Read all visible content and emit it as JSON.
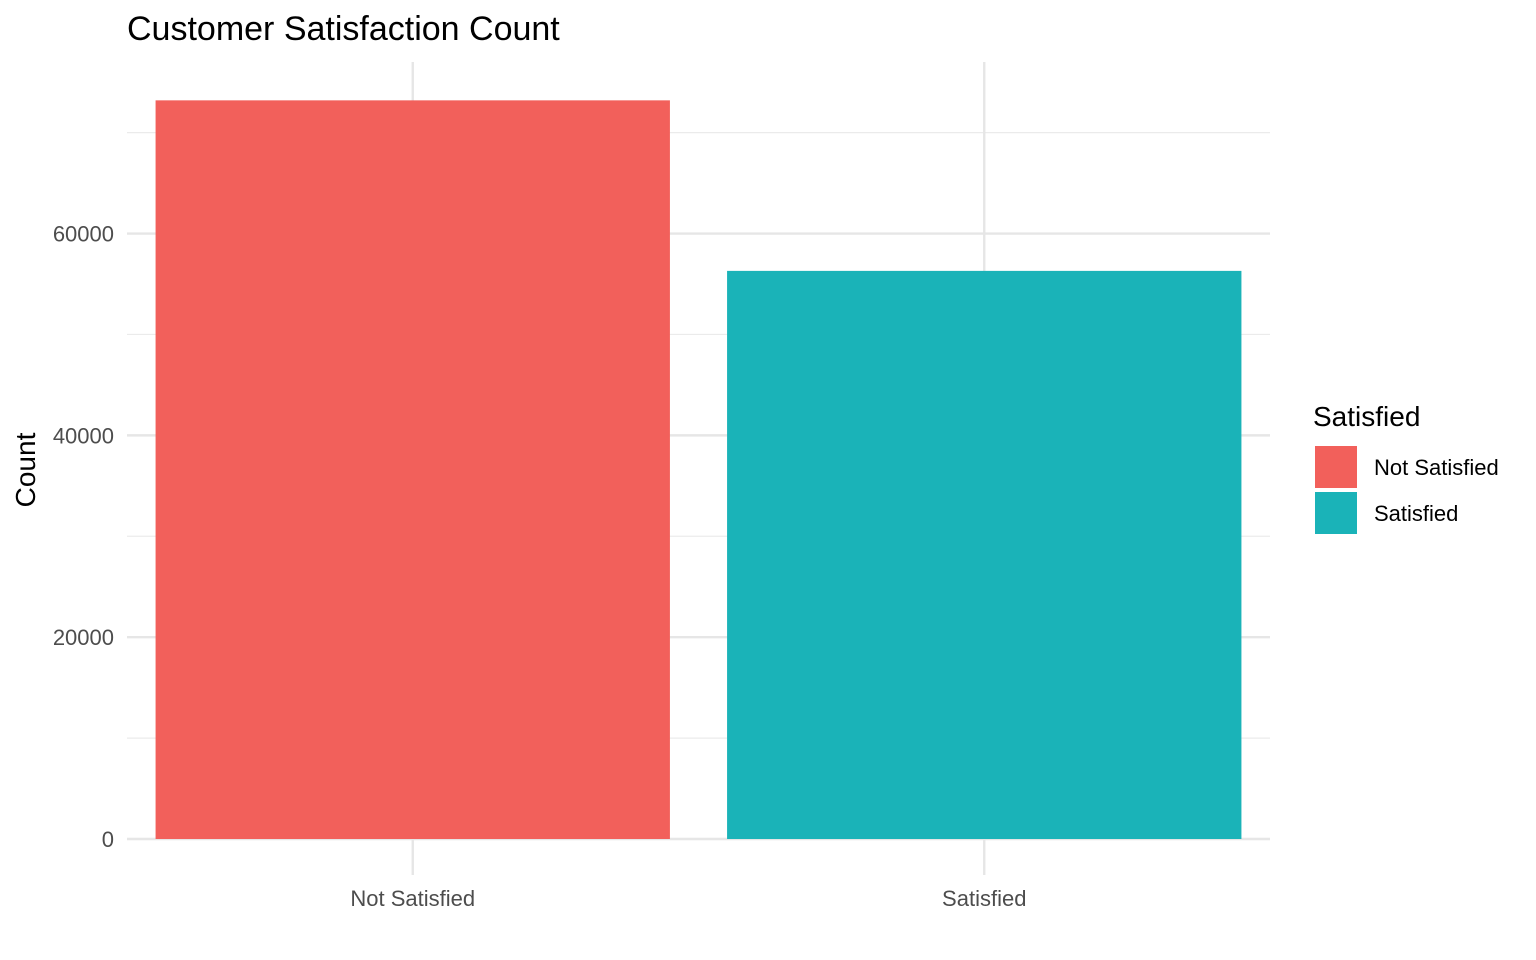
{
  "chart_data": {
    "type": "bar",
    "title": "Customer Satisfaction Count",
    "xlabel": "",
    "ylabel": "Count",
    "categories": [
      "Not Satisfied",
      "Satisfied"
    ],
    "values": [
      73200,
      56300
    ],
    "colors": [
      "#F2605B",
      "#1AB3B8"
    ],
    "ylim": [
      0,
      77000
    ],
    "yticks": [
      0,
      20000,
      40000,
      60000
    ],
    "ytick_labels": [
      "0",
      "20000",
      "40000",
      "60000"
    ],
    "grid": true,
    "legend": {
      "title": "Satisfied",
      "placement": "right",
      "entries": [
        "Not Satisfied",
        "Satisfied"
      ]
    }
  }
}
